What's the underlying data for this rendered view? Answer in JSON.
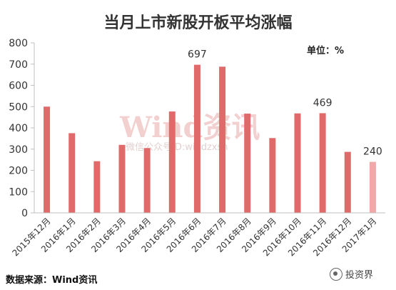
{
  "header": {
    "title": "当月上市新股开板平均涨幅"
  },
  "unit_label": "单位：%",
  "source_label": "数据来源：Wind资讯",
  "footer_brand": "投资界",
  "watermark": {
    "main": "Wind资讯",
    "sub": "微信公众号ID:windzxsh"
  },
  "colors": {
    "bar": "#e06a6a",
    "bar_last": "#f0a8a8",
    "axis": "#bfbfbf"
  },
  "chart_data": {
    "type": "bar",
    "title": "当月上市新股开板平均涨幅",
    "xlabel": "",
    "ylabel": "",
    "ylim": [
      0,
      800
    ],
    "yticks": [
      0,
      100,
      200,
      300,
      400,
      500,
      600,
      700,
      800
    ],
    "grid": false,
    "categories": [
      "2015年12月",
      "2016年1月",
      "2016年2月",
      "2016年3月",
      "2016年4月",
      "2016年5月",
      "2016年6月",
      "2016年7月",
      "2016年8月",
      "2016年9月",
      "2016年10月",
      "2016年11月",
      "2016年12月",
      "2017年1月"
    ],
    "values": [
      500,
      375,
      243,
      320,
      305,
      477,
      697,
      688,
      467,
      352,
      468,
      469,
      287,
      240
    ],
    "data_labels": [
      {
        "index": 6,
        "text": "697"
      },
      {
        "index": 11,
        "text": "469"
      },
      {
        "index": 13,
        "text": "240"
      }
    ]
  }
}
